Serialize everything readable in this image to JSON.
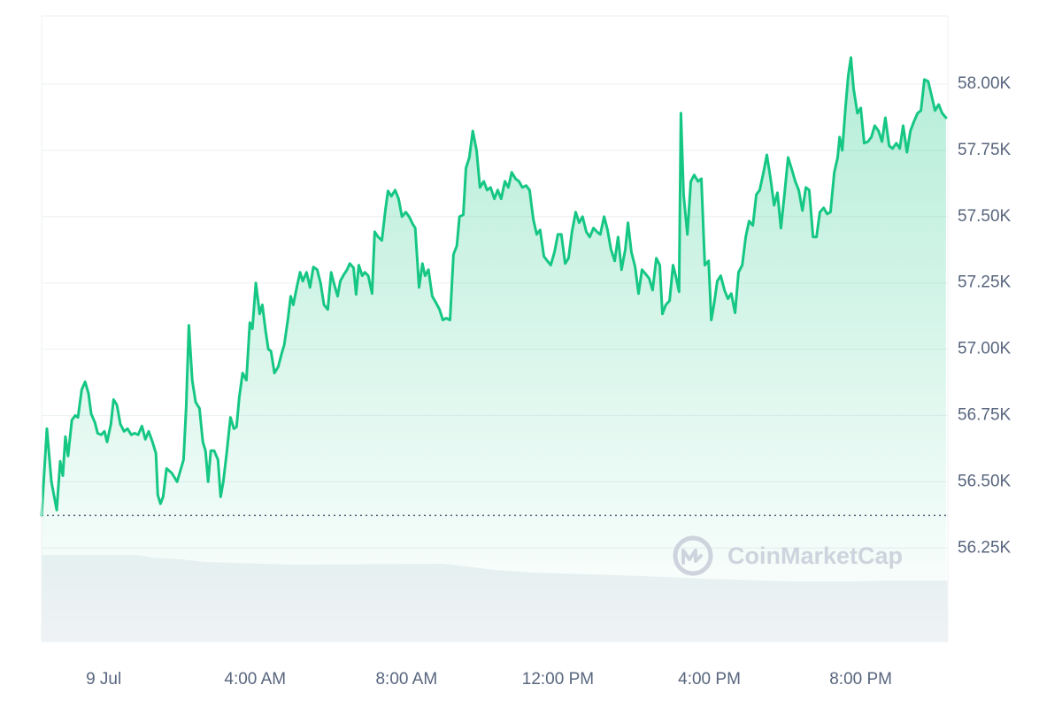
{
  "chart_data": {
    "type": "line",
    "color": "#16c784",
    "area": true,
    "grid": true,
    "watermark": "CoinMarketCap",
    "xlim": [
      -1.64,
      22.3
    ],
    "ylim": [
      55897,
      58257
    ],
    "xticks": [
      {
        "value": 0,
        "label": "9 Jul"
      },
      {
        "value": 4,
        "label": "4:00 AM"
      },
      {
        "value": 8,
        "label": "8:00 AM"
      },
      {
        "value": 12,
        "label": "12:00 PM"
      },
      {
        "value": 16,
        "label": "4:00 PM"
      },
      {
        "value": 20,
        "label": "8:00 PM"
      }
    ],
    "yticks": [
      {
        "value": 56250,
        "label": "56.25K"
      },
      {
        "value": 56500,
        "label": "56.50K"
      },
      {
        "value": 56750,
        "label": "56.75K"
      },
      {
        "value": 57000,
        "label": "57.00K"
      },
      {
        "value": 57250,
        "label": "57.25K"
      },
      {
        "value": 57500,
        "label": "57.50K"
      },
      {
        "value": 57750,
        "label": "57.75K"
      },
      {
        "value": 58000,
        "label": "58.00K"
      }
    ],
    "x": [
      -1.64,
      -1.5,
      -1.38,
      -1.24,
      -1.15,
      -1.08,
      -1.01,
      -0.94,
      -0.84,
      -0.75,
      -0.68,
      -0.58,
      -0.49,
      -0.4,
      -0.33,
      -0.23,
      -0.16,
      -0.07,
      0.02,
      0.09,
      0.19,
      0.26,
      0.35,
      0.44,
      0.54,
      0.63,
      0.73,
      0.82,
      0.91,
      1.01,
      1.1,
      1.19,
      1.29,
      1.38,
      1.43,
      1.5,
      1.57,
      1.66,
      1.8,
      1.94,
      2.11,
      2.18,
      2.25,
      2.34,
      2.43,
      2.53,
      2.62,
      2.69,
      2.76,
      2.83,
      2.92,
      3.02,
      3.09,
      3.16,
      3.25,
      3.35,
      3.44,
      3.51,
      3.58,
      3.67,
      3.77,
      3.86,
      3.93,
      4.02,
      4.12,
      4.19,
      4.28,
      4.35,
      4.42,
      4.51,
      4.61,
      4.7,
      4.77,
      4.87,
      4.94,
      5.01,
      5.1,
      5.19,
      5.26,
      5.36,
      5.45,
      5.54,
      5.64,
      5.73,
      5.82,
      5.92,
      6.01,
      6.08,
      6.18,
      6.25,
      6.34,
      6.43,
      6.5,
      6.6,
      6.67,
      6.74,
      6.83,
      6.9,
      6.99,
      7.09,
      7.16,
      7.25,
      7.35,
      7.44,
      7.51,
      7.6,
      7.7,
      7.79,
      7.88,
      7.98,
      8.07,
      8.16,
      8.23,
      8.33,
      8.42,
      8.49,
      8.58,
      8.68,
      8.77,
      8.87,
      8.96,
      9.05,
      9.15,
      9.24,
      9.33,
      9.4,
      9.5,
      9.57,
      9.66,
      9.75,
      9.85,
      9.94,
      10.04,
      10.13,
      10.22,
      10.32,
      10.41,
      10.5,
      10.6,
      10.69,
      10.78,
      10.88,
      10.97,
      11.06,
      11.16,
      11.25,
      11.35,
      11.44,
      11.53,
      11.63,
      11.72,
      11.81,
      11.91,
      12.0,
      12.09,
      12.19,
      12.28,
      12.37,
      12.47,
      12.56,
      12.65,
      12.75,
      12.84,
      12.94,
      13.03,
      13.12,
      13.22,
      13.31,
      13.4,
      13.5,
      13.59,
      13.68,
      13.78,
      13.85,
      13.94,
      14.04,
      14.13,
      14.22,
      14.32,
      14.41,
      14.5,
      14.6,
      14.69,
      14.76,
      14.85,
      14.95,
      15.04,
      15.11,
      15.2,
      15.25,
      15.32,
      15.42,
      15.51,
      15.6,
      15.7,
      15.79,
      15.88,
      15.98,
      16.05,
      16.12,
      16.21,
      16.3,
      16.4,
      16.49,
      16.58,
      16.68,
      16.77,
      16.87,
      16.96,
      17.05,
      17.15,
      17.24,
      17.33,
      17.43,
      17.52,
      17.61,
      17.71,
      17.8,
      17.89,
      17.99,
      18.08,
      18.18,
      18.27,
      18.36,
      18.46,
      18.55,
      18.64,
      18.74,
      18.83,
      18.92,
      19.02,
      19.11,
      19.2,
      19.3,
      19.39,
      19.44,
      19.51,
      19.6,
      19.67,
      19.74,
      19.81,
      19.91,
      20.0,
      20.09,
      20.19,
      20.28,
      20.37,
      20.47,
      20.56,
      20.65,
      20.75,
      20.84,
      20.94,
      21.03,
      21.12,
      21.22,
      21.31,
      21.4,
      21.5,
      21.59,
      21.68,
      21.78,
      21.87,
      21.96,
      22.06,
      22.15,
      22.25
    ],
    "values": [
      56373,
      56700,
      56500,
      56393,
      56577,
      56523,
      56670,
      56597,
      56733,
      56750,
      56743,
      56847,
      56877,
      56833,
      56757,
      56723,
      56683,
      56677,
      56690,
      56650,
      56717,
      56810,
      56790,
      56717,
      56690,
      56700,
      56677,
      56683,
      56677,
      56710,
      56660,
      56690,
      56650,
      56607,
      56450,
      56417,
      56443,
      56550,
      56533,
      56500,
      56583,
      56783,
      57090,
      56883,
      56800,
      56777,
      56650,
      56617,
      56500,
      56617,
      56617,
      56583,
      56443,
      56500,
      56610,
      56743,
      56700,
      56707,
      56817,
      56910,
      56883,
      57100,
      57077,
      57250,
      57133,
      57167,
      57067,
      57000,
      56993,
      56910,
      56933,
      56983,
      57017,
      57117,
      57200,
      57167,
      57233,
      57290,
      57257,
      57290,
      57233,
      57310,
      57300,
      57250,
      57167,
      57150,
      57290,
      57250,
      57200,
      57257,
      57280,
      57300,
      57323,
      57307,
      57207,
      57317,
      57277,
      57290,
      57277,
      57210,
      57443,
      57423,
      57410,
      57523,
      57597,
      57577,
      57600,
      57567,
      57500,
      57517,
      57500,
      57473,
      57457,
      57233,
      57323,
      57277,
      57300,
      57200,
      57177,
      57150,
      57110,
      57117,
      57110,
      57357,
      57390,
      57500,
      57507,
      57683,
      57723,
      57823,
      57750,
      57610,
      57633,
      57600,
      57610,
      57567,
      57600,
      57567,
      57633,
      57610,
      57667,
      57643,
      57633,
      57610,
      57617,
      57600,
      57490,
      57433,
      57450,
      57350,
      57333,
      57317,
      57367,
      57433,
      57433,
      57323,
      57343,
      57443,
      57517,
      57477,
      57500,
      57443,
      57423,
      57457,
      57443,
      57433,
      57500,
      57450,
      57377,
      57333,
      57423,
      57300,
      57377,
      57477,
      57367,
      57310,
      57210,
      57300,
      57283,
      57267,
      57223,
      57343,
      57317,
      57133,
      57167,
      57183,
      57317,
      57277,
      57217,
      57890,
      57583,
      57433,
      57633,
      57657,
      57633,
      57643,
      57317,
      57333,
      57110,
      57167,
      57257,
      57277,
      57223,
      57190,
      57210,
      57137,
      57290,
      57317,
      57423,
      57483,
      57467,
      57583,
      57600,
      57667,
      57733,
      57650,
      57543,
      57590,
      57457,
      57590,
      57723,
      57677,
      57633,
      57600,
      57523,
      57610,
      57600,
      57423,
      57423,
      57517,
      57533,
      57510,
      57517,
      57667,
      57723,
      57800,
      57750,
      57917,
      58033,
      58100,
      57983,
      57890,
      57910,
      57777,
      57783,
      57800,
      57843,
      57823,
      57783,
      57873,
      57767,
      57757,
      57777,
      57757,
      57843,
      57743,
      57823,
      57857,
      57890,
      57900,
      58017,
      58010,
      57957,
      57900,
      57923,
      57890,
      57873
    ]
  }
}
